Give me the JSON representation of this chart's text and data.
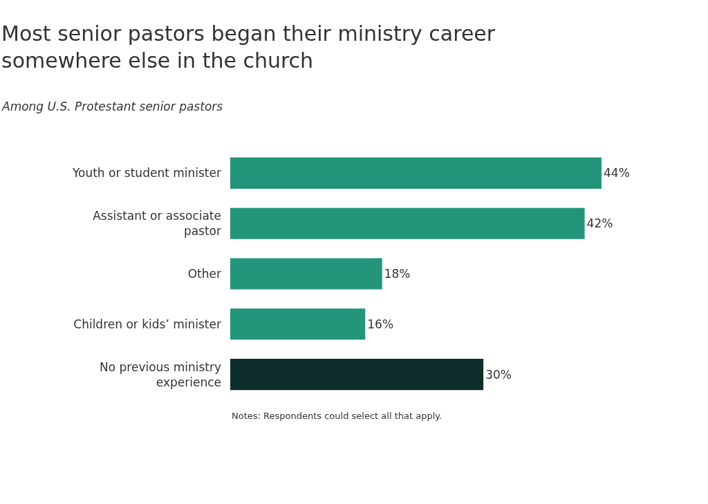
{
  "chart_data": {
    "type": "bar",
    "orientation": "horizontal",
    "title": "Most senior pastors began their ministry career somewhere else in the church",
    "subtitle": "Among U.S. Protestant senior pastors",
    "categories": [
      "Youth or student minister",
      "Assistant or associate pastor",
      "Other",
      "Children or kids’ minister",
      "No previous ministry experience"
    ],
    "values": [
      44,
      42,
      18,
      16,
      30
    ],
    "colors": [
      "#22957a",
      "#22957a",
      "#22957a",
      "#22957a",
      "#0d2e2b"
    ],
    "value_labels": [
      "44%",
      "42%",
      "18%",
      "16%",
      "30%"
    ],
    "annotations": [
      "Notes: Respondents could select all that apply."
    ]
  }
}
